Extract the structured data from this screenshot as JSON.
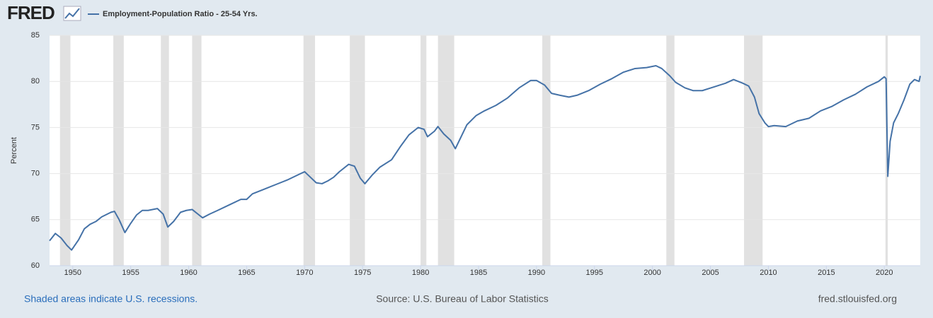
{
  "logo": "FRED",
  "footer": {
    "recession_note": "Shaded areas indicate U.S. recessions.",
    "source": "Source: U.S. Bureau of Labor Statistics",
    "site": "fred.stlouisfed.org"
  },
  "chart_data": {
    "type": "line",
    "ylabel": "Percent",
    "xlim": [
      1948.0,
      2023.1
    ],
    "ylim": [
      60,
      85
    ],
    "xticks": [
      1950,
      1955,
      1960,
      1965,
      1970,
      1975,
      1980,
      1985,
      1990,
      1995,
      2000,
      2005,
      2010,
      2015,
      2020
    ],
    "yticks": [
      60,
      65,
      70,
      75,
      80,
      85
    ],
    "grid": true,
    "recessions": [
      [
        1948.9,
        1949.8
      ],
      [
        1953.5,
        1954.4
      ],
      [
        1957.6,
        1958.3
      ],
      [
        1960.3,
        1961.1
      ],
      [
        1969.9,
        1970.9
      ],
      [
        1973.9,
        1975.2
      ],
      [
        1980.0,
        1980.5
      ],
      [
        1981.5,
        1982.9
      ],
      [
        1990.5,
        1991.2
      ],
      [
        2001.2,
        2001.9
      ],
      [
        2007.9,
        2009.5
      ],
      [
        2020.1,
        2020.3
      ]
    ],
    "recession_color": "#e1e1e1",
    "x": [
      1948.0,
      1948.5,
      1949.0,
      1949.5,
      1949.9,
      1950.5,
      1951.0,
      1951.5,
      1952.0,
      1952.5,
      1953.3,
      1953.6,
      1954.0,
      1954.5,
      1955.0,
      1955.5,
      1956.0,
      1956.5,
      1957.3,
      1957.8,
      1958.2,
      1958.7,
      1959.3,
      1959.8,
      1960.3,
      1960.8,
      1961.2,
      1961.8,
      1962.5,
      1963.5,
      1964.5,
      1965.0,
      1965.5,
      1966.5,
      1967.5,
      1968.5,
      1969.5,
      1970.0,
      1970.5,
      1971.0,
      1971.5,
      1972.0,
      1972.5,
      1973.0,
      1973.8,
      1974.3,
      1974.8,
      1975.2,
      1975.8,
      1976.5,
      1977.5,
      1978.3,
      1979.0,
      1979.8,
      1980.3,
      1980.6,
      1981.2,
      1981.5,
      1982.0,
      1982.6,
      1983.0,
      1983.5,
      1984.0,
      1984.8,
      1985.5,
      1986.5,
      1987.5,
      1988.5,
      1989.5,
      1990.0,
      1990.7,
      1991.3,
      1992.0,
      1992.8,
      1993.5,
      1994.5,
      1995.5,
      1996.5,
      1997.5,
      1998.5,
      1999.5,
      2000.3,
      2000.8,
      2001.5,
      2002.0,
      2002.8,
      2003.5,
      2004.3,
      2005.3,
      2006.3,
      2007.0,
      2007.8,
      2008.3,
      2008.8,
      2009.2,
      2009.7,
      2010.0,
      2010.5,
      2011.5,
      2012.5,
      2013.5,
      2014.5,
      2015.5,
      2016.5,
      2017.5,
      2018.5,
      2019.5,
      2020.0,
      2020.15,
      2020.3,
      2020.5,
      2020.8,
      2021.2,
      2021.7,
      2022.2,
      2022.6,
      2023.0,
      2023.1
    ],
    "series": [
      {
        "name": "Employment-Population Ratio - 25-54 Yrs.",
        "color": "#4572a7",
        "values": [
          62.7,
          63.5,
          63.0,
          62.2,
          61.7,
          62.8,
          64.0,
          64.5,
          64.8,
          65.3,
          65.8,
          65.9,
          65.0,
          63.6,
          64.6,
          65.5,
          66.0,
          66.0,
          66.2,
          65.6,
          64.2,
          64.8,
          65.8,
          66.0,
          66.1,
          65.6,
          65.2,
          65.6,
          66.0,
          66.6,
          67.2,
          67.2,
          67.8,
          68.3,
          68.8,
          69.3,
          69.9,
          70.2,
          69.6,
          69.0,
          68.9,
          69.2,
          69.6,
          70.2,
          71.0,
          70.8,
          69.5,
          68.9,
          69.8,
          70.7,
          71.5,
          73.0,
          74.2,
          75.0,
          74.8,
          74.0,
          74.6,
          75.1,
          74.3,
          73.6,
          72.7,
          74.0,
          75.3,
          76.3,
          76.8,
          77.4,
          78.2,
          79.3,
          80.1,
          80.1,
          79.6,
          78.7,
          78.5,
          78.3,
          78.5,
          79.0,
          79.7,
          80.3,
          81.0,
          81.4,
          81.5,
          81.7,
          81.4,
          80.6,
          79.9,
          79.3,
          79.0,
          79.0,
          79.4,
          79.8,
          80.2,
          79.8,
          79.5,
          78.3,
          76.5,
          75.5,
          75.1,
          75.2,
          75.1,
          75.7,
          76.0,
          76.8,
          77.3,
          78.0,
          78.6,
          79.4,
          80.0,
          80.5,
          80.3,
          69.7,
          73.5,
          75.5,
          76.5,
          78.0,
          79.7,
          80.2,
          80.0,
          80.6
        ]
      }
    ]
  }
}
